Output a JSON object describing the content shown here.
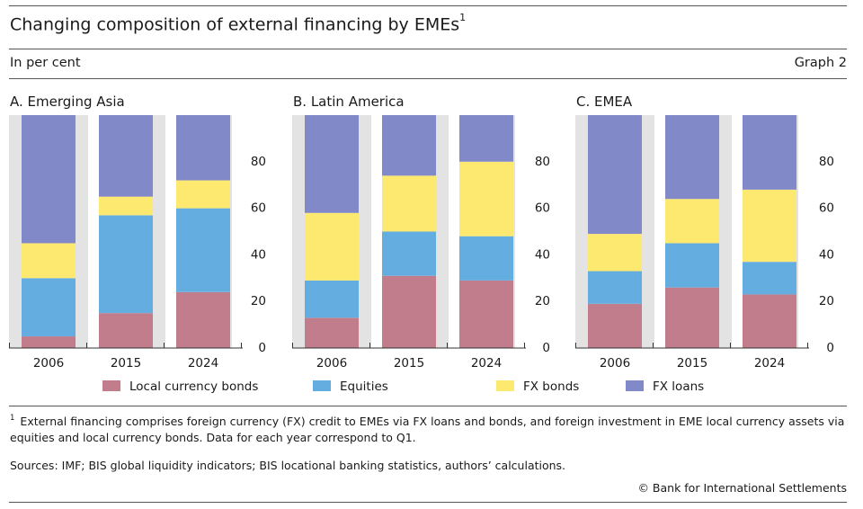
{
  "header": {
    "title": "Changing composition of external financing by EMEs",
    "title_footnote_marker": "1",
    "subtitle": "In per cent",
    "graph_number": "Graph 2"
  },
  "chart_data": [
    {
      "type": "bar",
      "stacked": true,
      "title": "A. Emerging Asia",
      "categories": [
        "2006",
        "2015",
        "2024"
      ],
      "ylim": [
        0,
        100
      ],
      "yticks": [
        "0",
        "20",
        "40",
        "60",
        "80"
      ],
      "series": [
        {
          "name": "Local currency bonds",
          "values": [
            5,
            15,
            24
          ]
        },
        {
          "name": "Equities",
          "values": [
            25,
            42,
            36
          ]
        },
        {
          "name": "FX bonds",
          "values": [
            15,
            8,
            12
          ]
        },
        {
          "name": "FX loans",
          "values": [
            55,
            35,
            28
          ]
        }
      ]
    },
    {
      "type": "bar",
      "stacked": true,
      "title": "B. Latin America",
      "categories": [
        "2006",
        "2015",
        "2024"
      ],
      "ylim": [
        0,
        100
      ],
      "yticks": [
        "0",
        "20",
        "40",
        "60",
        "80"
      ],
      "series": [
        {
          "name": "Local currency bonds",
          "values": [
            13,
            31,
            29
          ]
        },
        {
          "name": "Equities",
          "values": [
            16,
            19,
            19
          ]
        },
        {
          "name": "FX bonds",
          "values": [
            29,
            24,
            32
          ]
        },
        {
          "name": "FX loans",
          "values": [
            42,
            26,
            20
          ]
        }
      ]
    },
    {
      "type": "bar",
      "stacked": true,
      "title": "C. EMEA",
      "categories": [
        "2006",
        "2015",
        "2024"
      ],
      "ylim": [
        0,
        100
      ],
      "yticks": [
        "0",
        "20",
        "40",
        "60",
        "80"
      ],
      "series": [
        {
          "name": "Local currency bonds",
          "values": [
            19,
            26,
            23
          ]
        },
        {
          "name": "Equities",
          "values": [
            14,
            19,
            14
          ]
        },
        {
          "name": "FX bonds",
          "values": [
            16,
            19,
            31
          ]
        },
        {
          "name": "FX loans",
          "values": [
            51,
            36,
            32
          ]
        }
      ]
    }
  ],
  "legend": [
    {
      "label": "Local currency bonds",
      "color": "#c27d8c"
    },
    {
      "label": "Equities",
      "color": "#64ade0"
    },
    {
      "label": "FX bonds",
      "color": "#fde96f"
    },
    {
      "label": "FX loans",
      "color": "#8189c8"
    }
  ],
  "footnote": {
    "marker": "1",
    "text": "External financing comprises foreign currency (FX) credit to EMEs via FX loans and bonds, and foreign investment in EME local currency assets via equities and local currency bonds. Data for each year correspond to Q1."
  },
  "sources": "Sources: IMF; BIS global liquidity indicators; BIS locational banking statistics, authors’ calculations.",
  "copyright": "© Bank for International Settlements"
}
